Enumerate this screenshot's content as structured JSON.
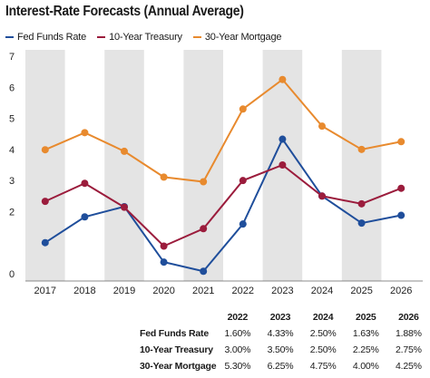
{
  "chart_data": {
    "type": "line",
    "title": "Interest-Rate Forecasts (Annual Average)",
    "categories": [
      "2017",
      "2018",
      "2019",
      "2020",
      "2021",
      "2022",
      "2023",
      "2024",
      "2025",
      "2026"
    ],
    "ylim": [
      0,
      7
    ],
    "yticks": [
      "0",
      "2",
      "3",
      "4",
      "5",
      "6",
      "7"
    ],
    "grid": "alternating shaded year columns",
    "legend_position": "top-left",
    "series": [
      {
        "name": "Fed Funds Rate",
        "color": "#1f4e9b",
        "values": [
          1.0,
          1.83,
          2.16,
          0.375,
          0.08,
          1.6,
          4.33,
          2.5,
          1.63,
          1.88
        ]
      },
      {
        "name": "10-Year Treasury",
        "color": "#9b1c3c",
        "values": [
          2.33,
          2.91,
          2.14,
          0.89,
          1.45,
          3.0,
          3.5,
          2.5,
          2.25,
          2.75
        ]
      },
      {
        "name": "30-Year Mortgage",
        "color": "#e88a2e",
        "values": [
          3.99,
          4.54,
          3.94,
          3.11,
          2.96,
          5.3,
          6.25,
          4.75,
          4.0,
          4.25
        ]
      }
    ],
    "table": {
      "headers": [
        "2022",
        "2023",
        "2024",
        "2025",
        "2026"
      ],
      "rows": [
        {
          "label": "Fed Funds Rate",
          "values": [
            "1.60%",
            "4.33%",
            "2.50%",
            "1.63%",
            "1.88%"
          ]
        },
        {
          "label": "10-Year Treasury",
          "values": [
            "3.00%",
            "3.50%",
            "2.50%",
            "2.25%",
            "2.75%"
          ]
        },
        {
          "label": "30-Year Mortgage",
          "values": [
            "5.30%",
            "6.25%",
            "4.75%",
            "4.00%",
            "4.25%"
          ]
        }
      ]
    }
  }
}
